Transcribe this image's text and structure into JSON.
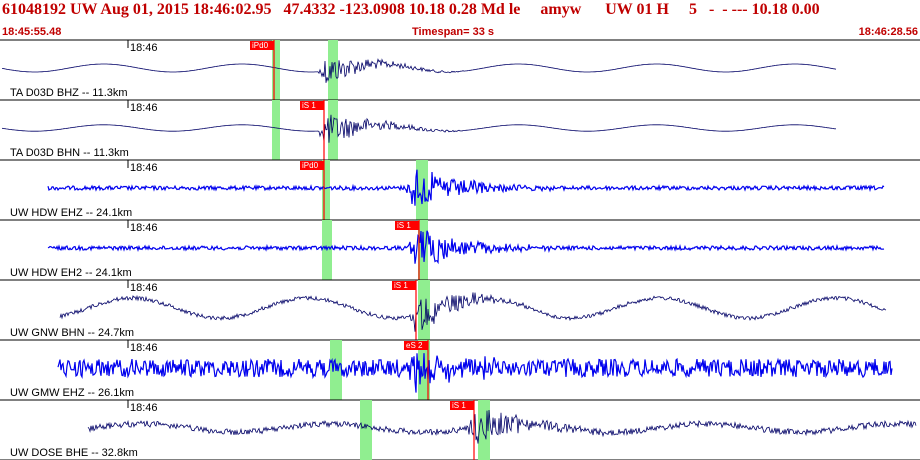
{
  "header": {
    "title": "61048192 UW Aug 01, 2015 18:46:02.95   47.4332 -123.0908 10.18 0.28 Md le     amyw      UW 01 H     5   -  - --- 10.18 0.00",
    "start_time": "18:45:55.48",
    "timespan": "Timespan=  33 s",
    "end_time": "18:46:28.56"
  },
  "colors": {
    "header_text": "#c00000",
    "pick_flag": "#ff0000",
    "pick_window": "#90ee90",
    "trace_dark": "#000066",
    "trace_blue": "#0000ee"
  },
  "chart_data": {
    "type": "line",
    "title": "61048192 UW Aug 01, 2015 18:46:02.95",
    "x_start": "18:45:55.48",
    "x_end": "18:46:28.56",
    "tick_label": "18:46",
    "traces": [
      {
        "name": "TA D03D BHZ -- 11.3km",
        "color": "dark",
        "pick": "iPd0",
        "style": "smooth",
        "amp": 5,
        "onset": 0.3,
        "event_amp": 16
      },
      {
        "name": "TA D03D BHN -- 11.3km",
        "color": "dark",
        "pick": "iS 1",
        "style": "smooth",
        "amp": 4,
        "onset": 0.36,
        "event_amp": 18
      },
      {
        "name": "UW HDW EHZ -- 24.1km",
        "color": "blue",
        "pick": "iPd0",
        "style": "noisy",
        "amp": 2,
        "onset": 0.36,
        "event_amp": 22
      },
      {
        "name": "UW HDW EH2 -- 24.1km",
        "color": "blue",
        "pick": "iS 1",
        "style": "noisy",
        "amp": 2,
        "onset": 0.46,
        "event_amp": 24
      },
      {
        "name": "UW GNW BHN -- 24.7km",
        "color": "dark",
        "pick": "iS 1",
        "style": "wave",
        "amp": 10,
        "onset": 0.45,
        "event_amp": 20
      },
      {
        "name": "UW GMW EHZ -- 26.1km",
        "color": "blue",
        "pick": "eS 2",
        "style": "noisy",
        "amp": 9,
        "onset": 0.46,
        "event_amp": 20
      },
      {
        "name": "UW DOSE BHE -- 32.8km",
        "color": "dark",
        "pick": "iS 1",
        "style": "mixed",
        "amp": 7,
        "onset": 0.52,
        "event_amp": 22
      }
    ]
  }
}
